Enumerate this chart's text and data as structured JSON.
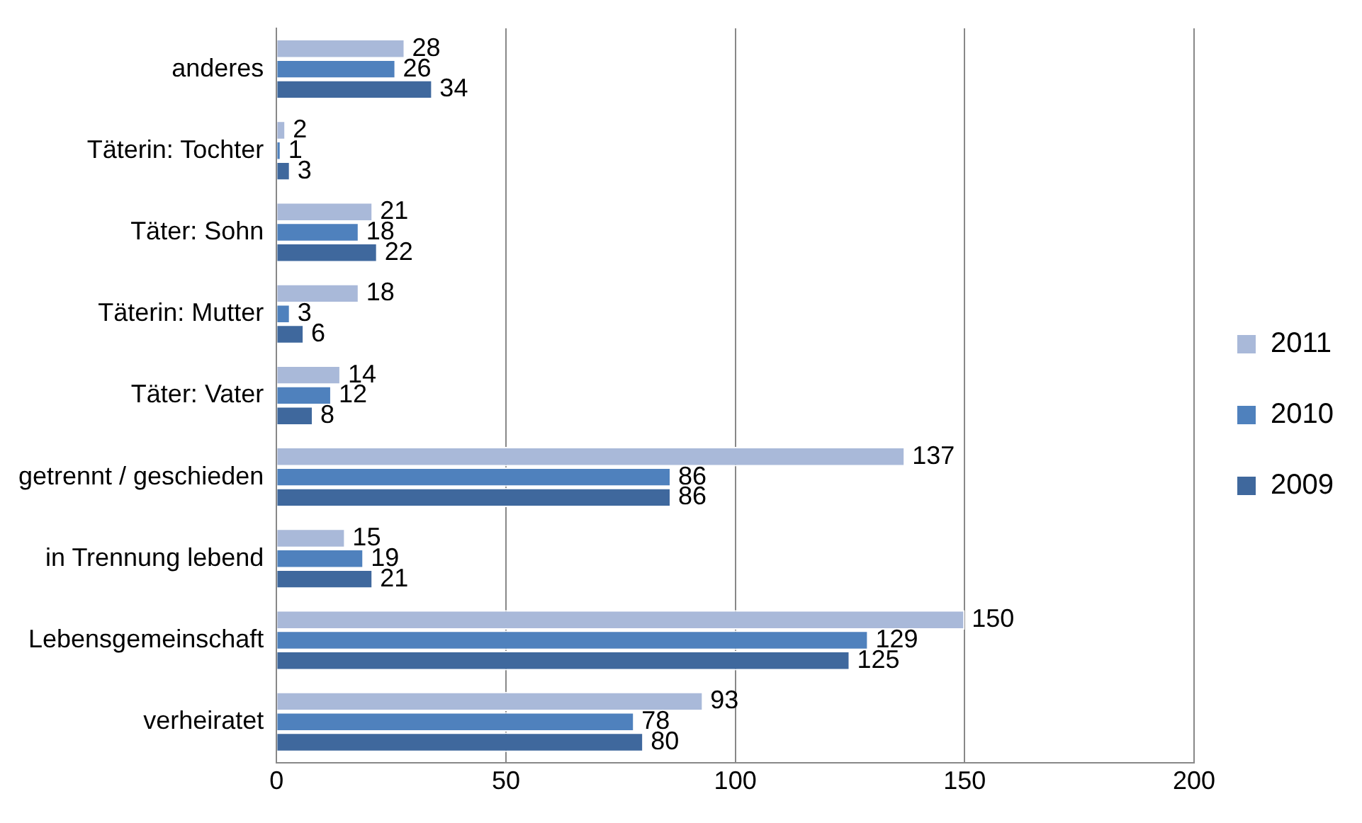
{
  "chart_data": {
    "type": "bar",
    "orientation": "horizontal",
    "categories": [
      "anderes",
      "Täterin: Tochter",
      "Täter: Sohn",
      "Täterin: Mutter",
      "Täter: Vater",
      "getrennt / geschieden",
      "in Trennung lebend",
      "Lebensgemeinschaft",
      "verheiratet"
    ],
    "series": [
      {
        "name": "2011",
        "color": "#a9b9d9",
        "values": [
          28,
          2,
          21,
          18,
          14,
          137,
          15,
          150,
          93
        ]
      },
      {
        "name": "2010",
        "color": "#4f81bd",
        "values": [
          26,
          1,
          18,
          3,
          12,
          86,
          19,
          129,
          78
        ]
      },
      {
        "name": "2009",
        "color": "#3f689d",
        "values": [
          34,
          3,
          22,
          6,
          8,
          86,
          21,
          125,
          80
        ]
      }
    ],
    "xlim": [
      0,
      200
    ],
    "xticks": [
      0,
      50,
      100,
      150,
      200
    ],
    "grid": "x",
    "legend": "right",
    "data_labels": true
  }
}
